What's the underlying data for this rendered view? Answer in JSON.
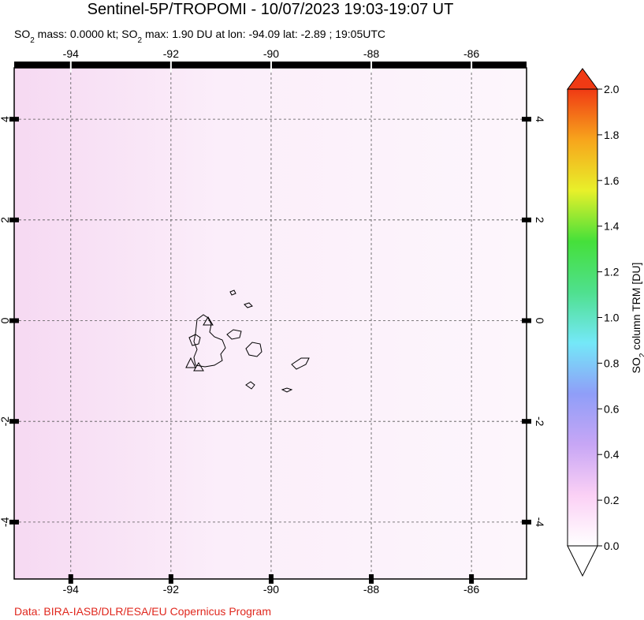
{
  "chart_data": {
    "type": "map",
    "title": "Sentinel-5P/TROPOMI - 10/07/2023 19:03-19:07 UT",
    "subtitle": [
      "SO",
      "2",
      " mass: 0.0000 kt; SO",
      "2",
      " max: 1.90 DU at lon: -94.09 lat: -2.89 ; 19:05UTC"
    ],
    "xlim": [
      -95.13,
      -84.9
    ],
    "ylim": [
      -5.13,
      5.02
    ],
    "xticks": [
      -94,
      -92,
      -90,
      -88,
      -86
    ],
    "yticks": [
      4,
      2,
      0,
      -2,
      -4
    ],
    "grid": true,
    "colorbar": {
      "label": [
        "SO",
        "2",
        " column TRM [DU]"
      ],
      "lim": [
        0,
        2
      ],
      "ticks": [
        {
          "value": 0,
          "label": "0.0"
        },
        {
          "value": 0.2,
          "label": "0.2"
        },
        {
          "value": 0.4,
          "label": "0.4"
        },
        {
          "value": 0.6,
          "label": "0.6"
        },
        {
          "value": 0.8,
          "label": "0.8"
        },
        {
          "value": 1,
          "label": "1.0"
        },
        {
          "value": 1.2,
          "label": "1.2"
        },
        {
          "value": 1.4,
          "label": "1.4"
        },
        {
          "value": 1.6,
          "label": "1.6"
        },
        {
          "value": 1.8,
          "label": "1.8"
        },
        {
          "value": 2,
          "label": "2.0"
        }
      ],
      "colors": [
        "#ffffff",
        "#fbd0f5",
        "#c7a6f5",
        "#8f9ef8",
        "#74e8f8",
        "#4fe08e",
        "#45e03a",
        "#e8f02a",
        "#f7a51c",
        "#f03a14"
      ]
    },
    "credit": "Data: BIRA-IASB/DLR/ESA/EU Copernicus Program"
  }
}
